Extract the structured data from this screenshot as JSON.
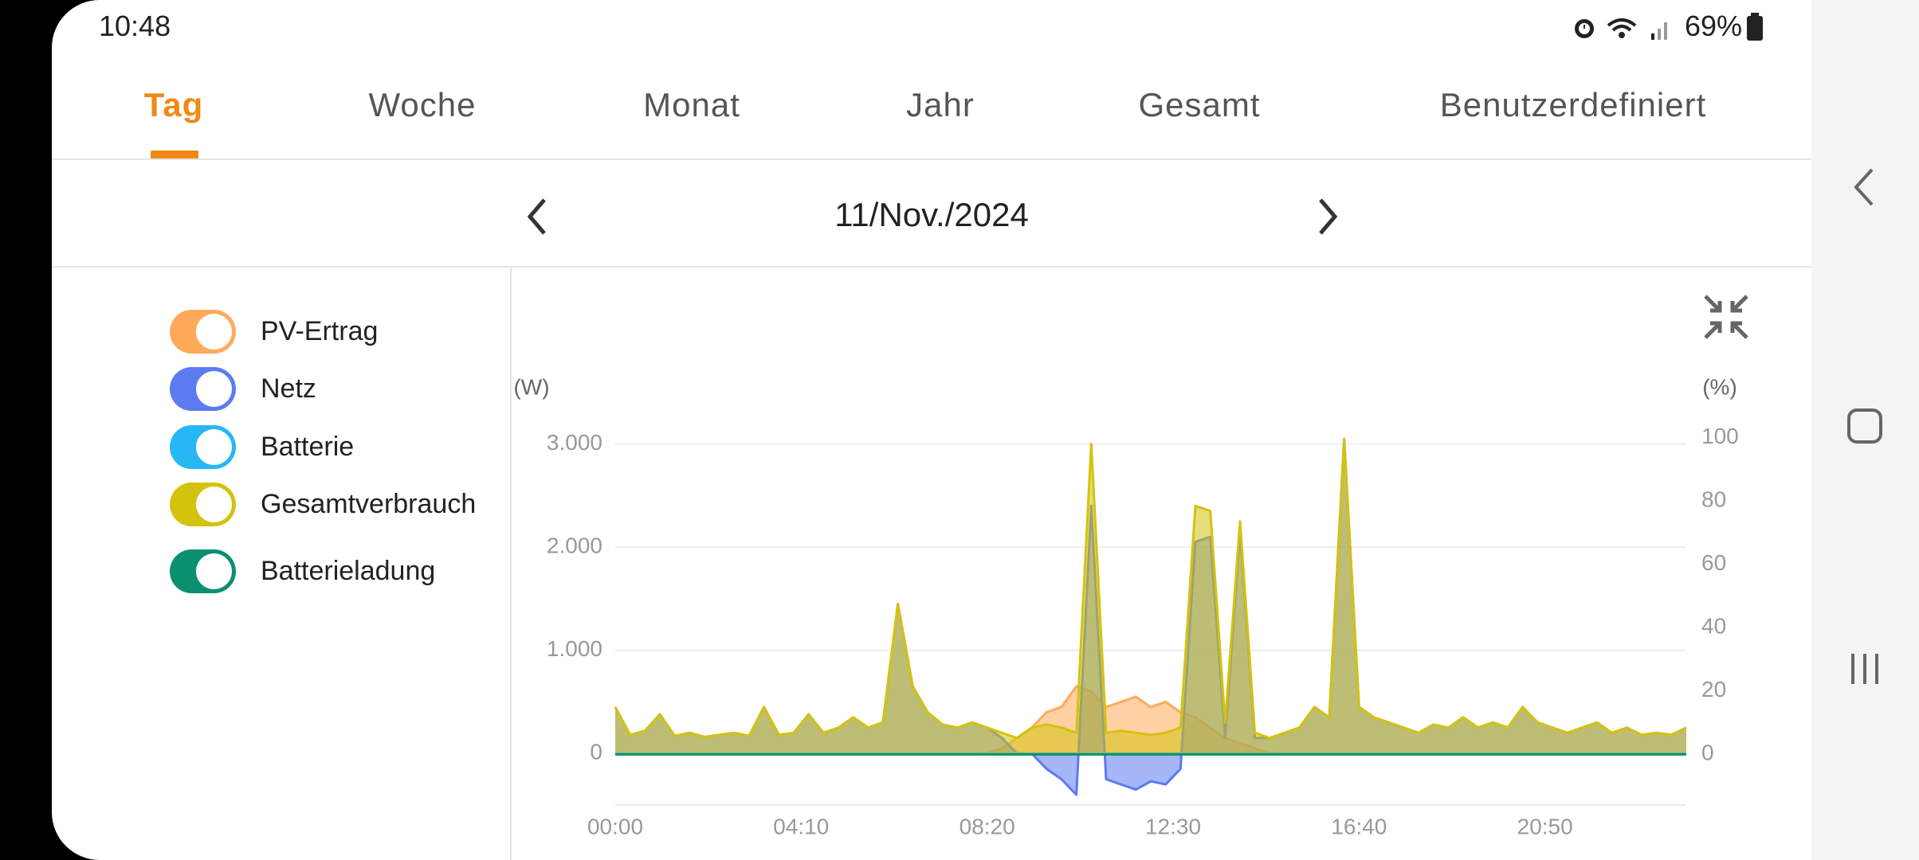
{
  "status_bar": {
    "time": "10:48",
    "battery": "69%"
  },
  "tabs": [
    "Tag",
    "Woche",
    "Monat",
    "Jahr",
    "Gesamt",
    "Benutzerdefiniert"
  ],
  "date": "11/Nov./2024",
  "chart_data": {
    "type": "area",
    "y_unit": "(W)",
    "y2_unit": "(%)",
    "x": [
      0,
      20,
      40,
      60,
      80,
      100,
      120,
      140,
      160,
      180,
      200,
      220,
      240,
      260,
      280,
      300,
      320,
      340,
      360,
      380,
      400,
      420,
      440,
      460,
      480,
      500,
      520,
      540,
      560,
      580,
      600,
      620,
      640,
      660,
      680,
      700,
      720,
      740,
      760,
      780,
      800,
      820,
      840,
      860,
      880,
      900,
      920,
      940,
      960,
      980,
      1000,
      1020,
      1040,
      1060,
      1080,
      1100,
      1120,
      1140,
      1160,
      1180,
      1200,
      1220,
      1240,
      1260,
      1280,
      1300,
      1320,
      1340,
      1360,
      1380,
      1400,
      1420,
      1440
    ],
    "xlim": [
      0,
      1440
    ],
    "xticks": [
      {
        "value": 0,
        "label": "00:00"
      },
      {
        "value": 250,
        "label": "04:10"
      },
      {
        "value": 500,
        "label": "08:20"
      },
      {
        "value": 750,
        "label": "12:30"
      },
      {
        "value": 1000,
        "label": "16:40"
      },
      {
        "value": 1250,
        "label": "20:50"
      }
    ],
    "ylim": [
      -500,
      3000
    ],
    "yticks": [
      0,
      {
        "value": 1000,
        "label": "1.000"
      },
      {
        "value": 2000,
        "label": "2.000"
      },
      {
        "value": 3000,
        "label": "3.000"
      }
    ],
    "y2lim": [
      -16,
      98
    ],
    "y2ticks": [
      0,
      20,
      40,
      60,
      80,
      100
    ],
    "grid": true,
    "series": [
      {
        "name": "PV-Ertrag",
        "color": "#ffaa5a",
        "values": [
          0,
          0,
          0,
          0,
          0,
          0,
          0,
          0,
          0,
          0,
          0,
          0,
          0,
          0,
          0,
          0,
          0,
          0,
          0,
          0,
          0,
          0,
          0,
          0,
          0,
          0,
          50,
          150,
          250,
          400,
          450,
          650,
          600,
          450,
          500,
          550,
          450,
          500,
          400,
          350,
          250,
          150,
          100,
          50,
          0,
          0,
          0,
          0,
          0,
          0,
          0,
          0,
          0,
          0,
          0,
          0,
          0,
          0,
          0,
          0,
          0,
          0,
          0,
          0,
          0,
          0,
          0,
          0,
          0,
          0,
          0,
          0,
          0
        ]
      },
      {
        "name": "Netz",
        "color": "#5b7bf0",
        "values": [
          450,
          180,
          220,
          380,
          170,
          200,
          160,
          180,
          200,
          170,
          450,
          180,
          200,
          380,
          200,
          250,
          350,
          250,
          300,
          1450,
          650,
          400,
          280,
          250,
          300,
          250,
          150,
          0,
          0,
          -150,
          -250,
          -400,
          2400,
          -250,
          -300,
          -350,
          -270,
          -300,
          -150,
          2050,
          2100,
          150,
          2150,
          150,
          150,
          200,
          250,
          450,
          350,
          3050,
          450,
          350,
          300,
          250,
          200,
          280,
          250,
          350,
          250,
          300,
          250,
          450,
          300,
          250,
          200,
          250,
          300,
          200,
          250,
          180,
          200,
          180,
          250
        ]
      },
      {
        "name": "Batterie",
        "color": "#27b7f5",
        "values": [
          0,
          0,
          0,
          0,
          0,
          0,
          0,
          0,
          0,
          0,
          0,
          0,
          0,
          0,
          0,
          0,
          0,
          0,
          0,
          0,
          0,
          0,
          0,
          0,
          0,
          0,
          0,
          0,
          0,
          0,
          0,
          0,
          0,
          0,
          0,
          0,
          0,
          0,
          0,
          0,
          0,
          0,
          0,
          0,
          0,
          0,
          0,
          0,
          0,
          0,
          0,
          0,
          0,
          0,
          0,
          0,
          0,
          0,
          0,
          0,
          0,
          0,
          0,
          0,
          0,
          0,
          0,
          0,
          0,
          0,
          0,
          0,
          0
        ]
      },
      {
        "name": "Gesamtverbrauch",
        "color": "#d4c30c",
        "values": [
          450,
          180,
          220,
          380,
          170,
          200,
          160,
          180,
          200,
          170,
          450,
          180,
          200,
          380,
          200,
          250,
          350,
          250,
          300,
          1450,
          650,
          400,
          280,
          250,
          300,
          250,
          200,
          150,
          250,
          280,
          250,
          200,
          3000,
          200,
          220,
          200,
          180,
          200,
          250,
          2400,
          2350,
          300,
          2250,
          200,
          150,
          200,
          250,
          450,
          350,
          3050,
          450,
          350,
          300,
          250,
          200,
          280,
          250,
          350,
          250,
          300,
          250,
          450,
          300,
          250,
          200,
          250,
          300,
          200,
          250,
          180,
          200,
          180,
          250
        ]
      },
      {
        "name": "Batterieladung",
        "color": "#0a8f6f",
        "axis": "y2",
        "values": [
          0,
          0,
          0,
          0,
          0,
          0,
          0,
          0,
          0,
          0,
          0,
          0,
          0,
          0,
          0,
          0,
          0,
          0,
          0,
          0,
          0,
          0,
          0,
          0,
          0,
          0,
          0,
          0,
          0,
          0,
          0,
          0,
          0,
          0,
          0,
          0,
          0,
          0,
          0,
          0,
          0,
          0,
          0,
          0,
          0,
          0,
          0,
          0,
          0,
          0,
          0,
          0,
          0,
          0,
          0,
          0,
          0,
          0,
          0,
          0,
          0,
          0,
          0,
          0,
          0,
          0,
          0,
          0,
          0,
          0,
          0,
          0,
          0
        ]
      }
    ]
  }
}
